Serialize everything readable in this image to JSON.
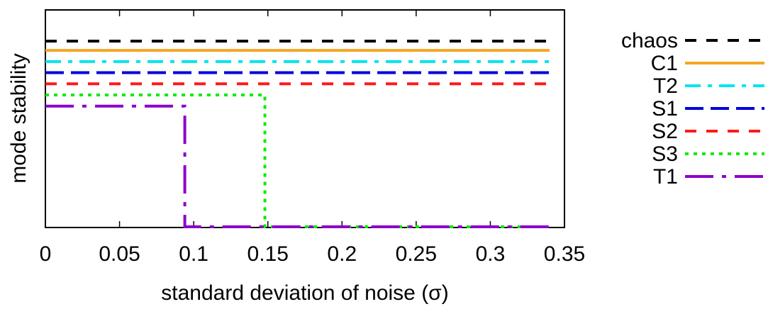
{
  "chart_data": {
    "type": "line",
    "title": "",
    "xlabel": "standard deviation of noise (σ)",
    "ylabel": "mode stability",
    "xlim": [
      0,
      0.35
    ],
    "x_ticks": [
      "0",
      "0.05",
      "0.1",
      "0.15",
      "0.2",
      "0.25",
      "0.3",
      "0.35"
    ],
    "grid": false,
    "legend_position": "right",
    "series": [
      {
        "name": "chaos",
        "color": "#000000",
        "dash": "dashed",
        "x": [
          0,
          0.34
        ],
        "y": [
          1.0,
          1.0
        ]
      },
      {
        "name": "C1",
        "color": "#f5a623",
        "dash": "solid",
        "x": [
          0,
          0.34
        ],
        "y": [
          0.95,
          0.95
        ]
      },
      {
        "name": "T2",
        "color": "#00e5ee",
        "dash": "dash-dot",
        "x": [
          0,
          0.34
        ],
        "y": [
          0.89,
          0.89
        ]
      },
      {
        "name": "S1",
        "color": "#0000dd",
        "dash": "long-dash",
        "x": [
          0,
          0.34
        ],
        "y": [
          0.83,
          0.83
        ]
      },
      {
        "name": "S2",
        "color": "#ff1a1a",
        "dash": "dashed",
        "x": [
          0,
          0.34
        ],
        "y": [
          0.77,
          0.77
        ]
      },
      {
        "name": "S3",
        "color": "#00ee00",
        "dash": "dotted",
        "x": [
          0,
          0.148,
          0.148,
          0.34
        ],
        "y": [
          0.71,
          0.71,
          0,
          0
        ]
      },
      {
        "name": "T1",
        "color": "#8b00c9",
        "dash": "long-dash-dot",
        "x": [
          0,
          0.094,
          0.094,
          0.34
        ],
        "y": [
          0.65,
          0.65,
          0,
          0
        ]
      }
    ]
  }
}
